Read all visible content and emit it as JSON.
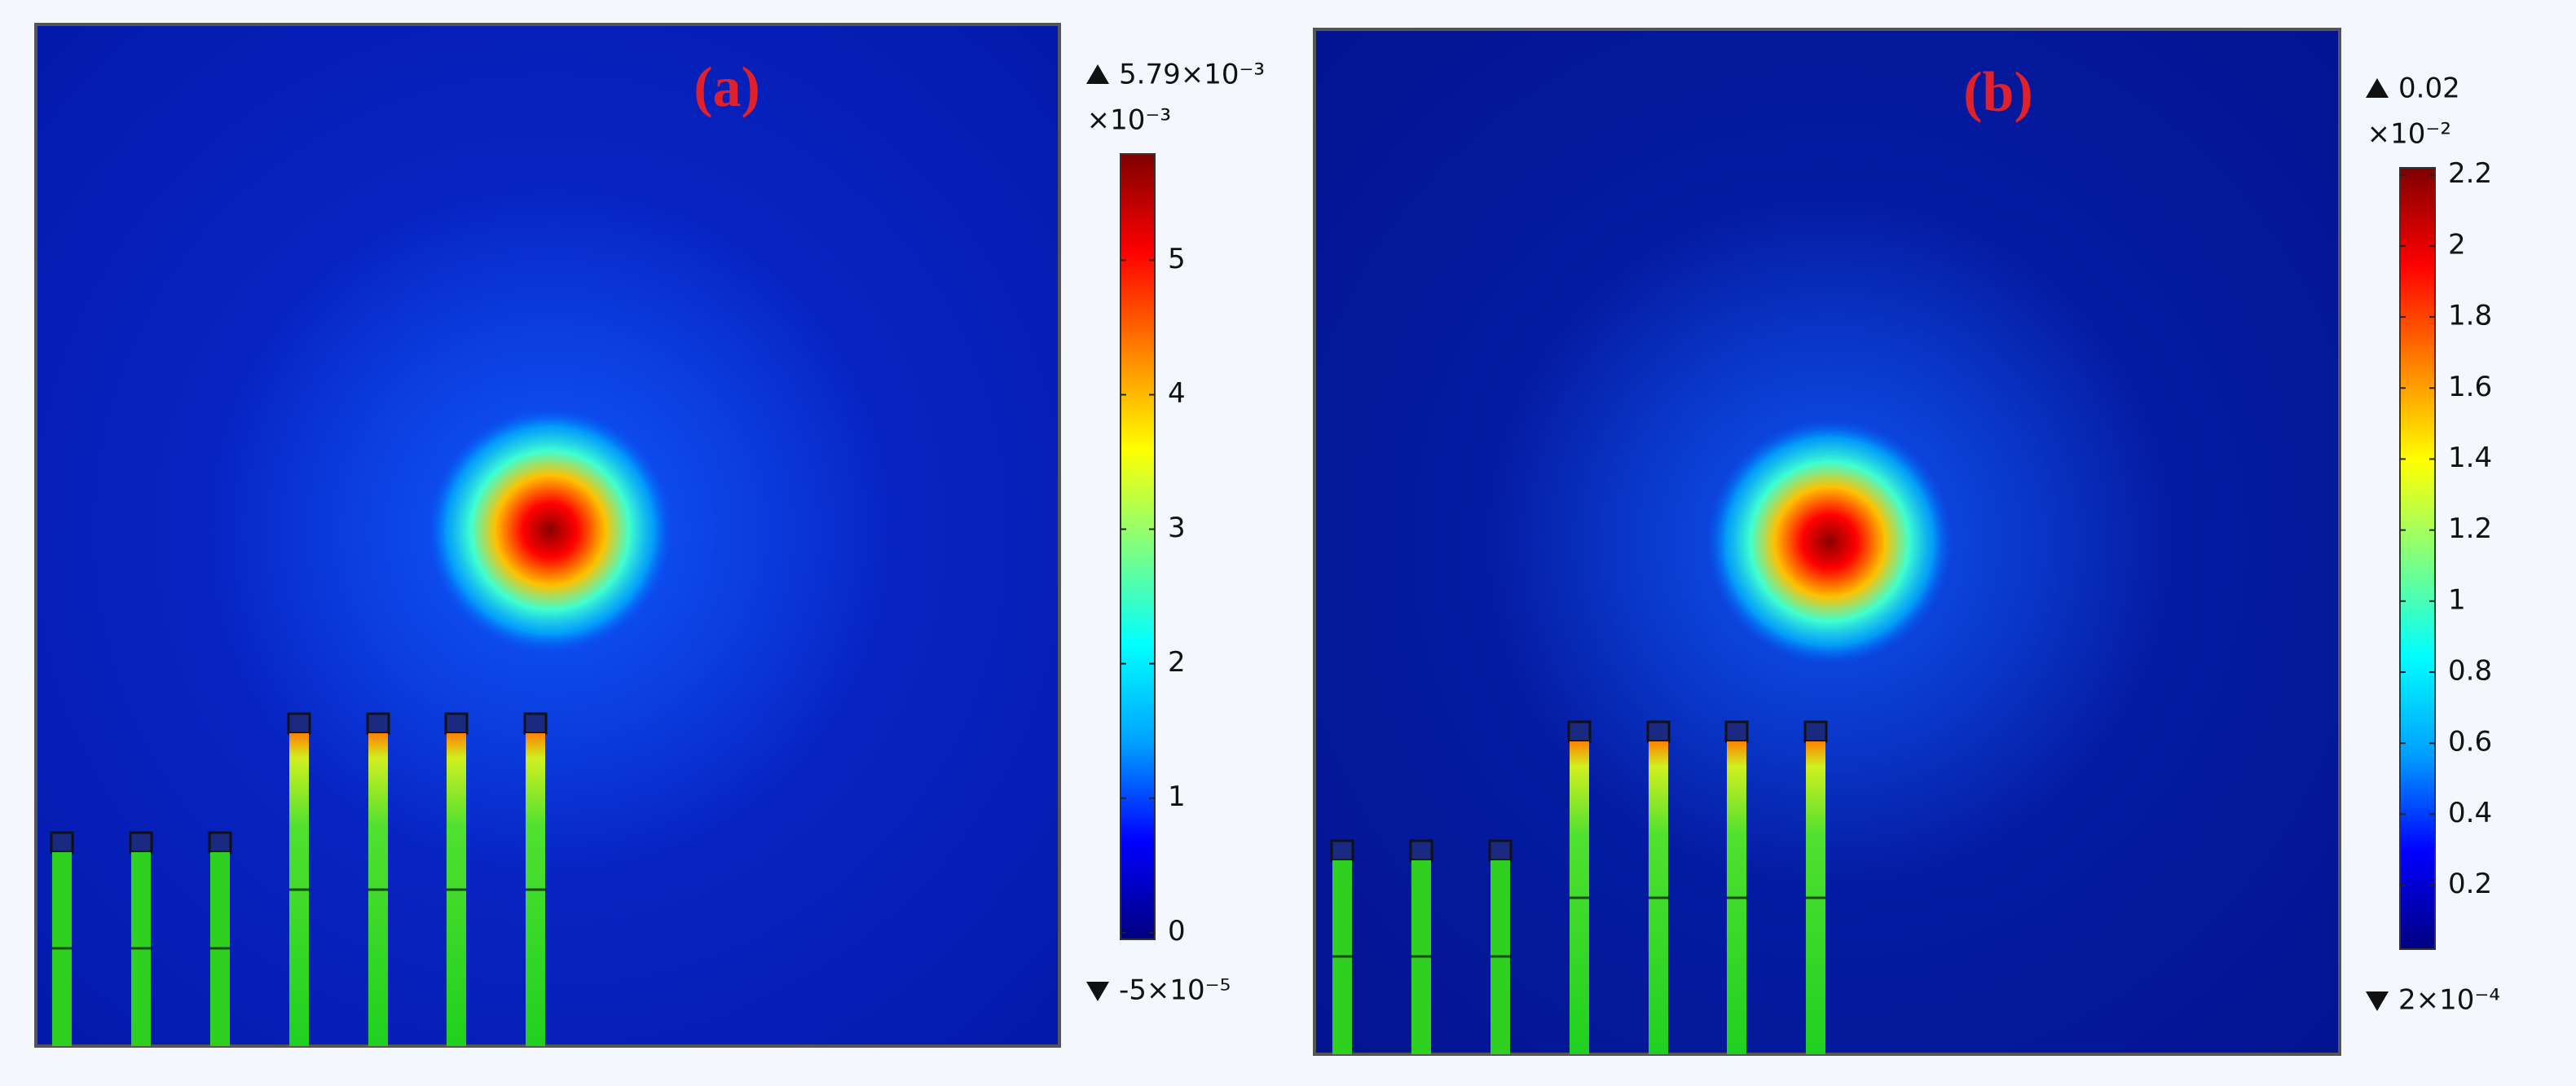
{
  "chart_data": [
    {
      "type": "heatmap",
      "panel_label": "(a)",
      "max_label": "5.79×10⁻³",
      "min_label": "-5×10⁻⁵",
      "scale_label": "×10⁻³",
      "ylim": [
        -0.05,
        5.79
      ],
      "yticks": [
        0,
        1,
        2,
        3,
        4,
        5
      ],
      "colors": [
        "#00007f",
        "#0000ff",
        "#00a0ff",
        "#00ffff",
        "#80ff80",
        "#ffff00",
        "#ff8000",
        "#ff0000",
        "#7f0000"
      ]
    },
    {
      "type": "heatmap",
      "panel_label": "(b)",
      "max_label": "0.02",
      "min_label": "2×10⁻⁴",
      "scale_label": "×10⁻²",
      "ylim": [
        0.02,
        2.22
      ],
      "yticks": [
        0.2,
        0.4,
        0.6,
        0.8,
        1,
        1.2,
        1.4,
        1.6,
        1.8,
        2,
        2.2
      ],
      "colors": [
        "#00007f",
        "#0000ff",
        "#00a0ff",
        "#00ffff",
        "#80ff80",
        "#ffff00",
        "#ff8000",
        "#ff0000",
        "#7f0000"
      ]
    }
  ]
}
